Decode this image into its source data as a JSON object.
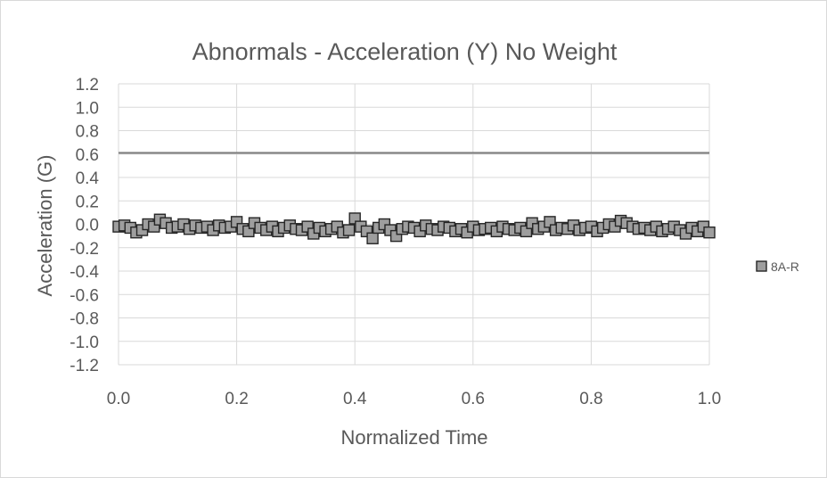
{
  "chart_data": {
    "type": "scatter",
    "title": "Abnormals - Acceleration (Y) No Weight",
    "xlabel": "Normalized Time",
    "ylabel": "Acceleration (G)",
    "xlim": [
      0,
      1
    ],
    "ylim": [
      -1.2,
      1.2
    ],
    "x_ticks": [
      "0.0",
      "0.2",
      "0.4",
      "0.6",
      "0.8",
      "1.0"
    ],
    "y_ticks": [
      "1.2",
      "1.0",
      "0.8",
      "0.6",
      "0.4",
      "0.2",
      "0.0",
      "-0.2",
      "-0.4",
      "-0.6",
      "-0.8",
      "-1.0",
      "-1.2"
    ],
    "grid": true,
    "legend_position": "right",
    "reference_line": {
      "y": 0.61,
      "color": "#808080"
    },
    "series": [
      {
        "name": "8A-R",
        "marker": "square",
        "color": "#9e9e9e",
        "x": [
          0.0,
          0.01,
          0.02,
          0.03,
          0.04,
          0.05,
          0.06,
          0.07,
          0.08,
          0.09,
          0.1,
          0.11,
          0.12,
          0.13,
          0.14,
          0.15,
          0.16,
          0.17,
          0.18,
          0.19,
          0.2,
          0.21,
          0.22,
          0.23,
          0.24,
          0.25,
          0.26,
          0.27,
          0.28,
          0.29,
          0.3,
          0.31,
          0.32,
          0.33,
          0.34,
          0.35,
          0.36,
          0.37,
          0.38,
          0.39,
          0.4,
          0.41,
          0.42,
          0.43,
          0.44,
          0.45,
          0.46,
          0.47,
          0.48,
          0.49,
          0.5,
          0.51,
          0.52,
          0.53,
          0.54,
          0.55,
          0.56,
          0.57,
          0.58,
          0.59,
          0.6,
          0.61,
          0.62,
          0.63,
          0.64,
          0.65,
          0.66,
          0.67,
          0.68,
          0.69,
          0.7,
          0.71,
          0.72,
          0.73,
          0.74,
          0.75,
          0.76,
          0.77,
          0.78,
          0.79,
          0.8,
          0.81,
          0.82,
          0.83,
          0.84,
          0.85,
          0.86,
          0.87,
          0.88,
          0.89,
          0.9,
          0.91,
          0.92,
          0.93,
          0.94,
          0.95,
          0.96,
          0.97,
          0.98,
          0.99,
          1.0
        ],
        "y": [
          -0.02,
          -0.01,
          -0.03,
          -0.07,
          -0.05,
          0.0,
          -0.02,
          0.04,
          0.01,
          -0.03,
          -0.02,
          0.0,
          -0.04,
          -0.01,
          -0.03,
          -0.02,
          -0.05,
          -0.01,
          -0.03,
          -0.02,
          0.02,
          -0.04,
          -0.06,
          0.01,
          -0.03,
          -0.05,
          -0.02,
          -0.06,
          -0.03,
          -0.01,
          -0.04,
          -0.05,
          -0.02,
          -0.08,
          -0.03,
          -0.06,
          -0.04,
          -0.02,
          -0.07,
          -0.05,
          0.05,
          -0.02,
          -0.06,
          -0.12,
          -0.03,
          0.0,
          -0.05,
          -0.1,
          -0.04,
          -0.02,
          -0.03,
          -0.06,
          -0.01,
          -0.04,
          -0.05,
          -0.02,
          -0.03,
          -0.06,
          -0.04,
          -0.07,
          -0.02,
          -0.05,
          -0.04,
          -0.03,
          -0.06,
          -0.02,
          -0.04,
          -0.05,
          -0.03,
          -0.06,
          0.01,
          -0.04,
          -0.02,
          0.02,
          -0.05,
          -0.03,
          -0.04,
          -0.01,
          -0.05,
          -0.03,
          -0.02,
          -0.06,
          -0.03,
          0.0,
          -0.02,
          0.03,
          0.01,
          -0.02,
          -0.04,
          -0.03,
          -0.05,
          -0.02,
          -0.06,
          -0.04,
          -0.02,
          -0.05,
          -0.08,
          -0.03,
          -0.06,
          -0.02,
          -0.07
        ]
      }
    ]
  }
}
